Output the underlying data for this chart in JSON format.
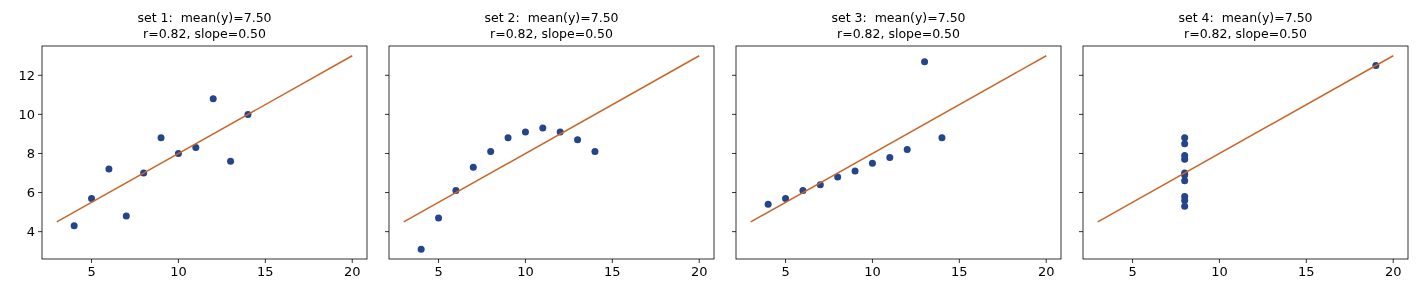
{
  "chart_data": [
    {
      "type": "scatter",
      "title": "set 1:  mean(y)=7.50\nr=0.82, slope=0.50",
      "xlim": [
        2.15,
        20.85
      ],
      "xticks": [
        5,
        10,
        15,
        20
      ],
      "ylim": [
        2.6,
        13.5
      ],
      "yticks": [
        4,
        6,
        8,
        10,
        12
      ],
      "marker": "circle",
      "series": [
        {
          "color": "#24448c",
          "x": [
            10,
            8,
            13,
            9,
            11,
            14,
            6,
            4,
            12,
            7,
            5
          ],
          "values": [
            8.0,
            7.0,
            7.6,
            8.8,
            8.3,
            10.0,
            7.2,
            4.3,
            10.8,
            4.8,
            5.7
          ]
        },
        {
          "type": "line",
          "color": "#c8662a",
          "marker": "none",
          "x": [
            3,
            20
          ],
          "values": [
            4.5,
            13
          ]
        }
      ]
    },
    {
      "type": "scatter",
      "title": "set 2:  mean(y)=7.50\nr=0.82, slope=0.50",
      "xlim": [
        2.15,
        20.85
      ],
      "xticks": [
        5,
        10,
        15,
        20
      ],
      "ylim": [
        2.6,
        13.5
      ],
      "yticks": [
        4,
        6,
        8,
        10,
        12
      ],
      "tick_labels": "x",
      "marker": "circle",
      "series": [
        {
          "color": "#24448c",
          "x": [
            10,
            8,
            13,
            9,
            11,
            14,
            6,
            4,
            12,
            7,
            5
          ],
          "values": [
            9.1,
            8.1,
            8.7,
            8.8,
            9.3,
            8.1,
            6.1,
            3.1,
            9.1,
            7.3,
            4.7
          ]
        },
        {
          "type": "line",
          "color": "#c8662a",
          "marker": "none",
          "x": [
            3,
            20
          ],
          "values": [
            4.5,
            13
          ]
        }
      ]
    },
    {
      "type": "scatter",
      "title": "set 3:  mean(y)=7.50\nr=0.82, slope=0.50",
      "xlim": [
        2.15,
        20.85
      ],
      "xticks": [
        5,
        10,
        15,
        20
      ],
      "ylim": [
        2.6,
        13.5
      ],
      "yticks": [
        4,
        6,
        8,
        10,
        12
      ],
      "tick_labels": "x",
      "marker": "circle",
      "series": [
        {
          "color": "#24448c",
          "x": [
            10,
            8,
            13,
            9,
            11,
            14,
            6,
            4,
            12,
            7,
            5
          ],
          "values": [
            7.5,
            6.8,
            12.7,
            7.1,
            7.8,
            8.8,
            6.1,
            5.4,
            8.2,
            6.4,
            5.7
          ]
        },
        {
          "type": "line",
          "color": "#c8662a",
          "marker": "none",
          "x": [
            3,
            20
          ],
          "values": [
            4.5,
            13
          ]
        }
      ]
    },
    {
      "type": "scatter",
      "title": "set 4:  mean(y)=7.50\nr=0.82, slope=0.50",
      "xlim": [
        2.15,
        20.85
      ],
      "xticks": [
        5,
        10,
        15,
        20
      ],
      "ylim": [
        2.6,
        13.5
      ],
      "yticks": [
        4,
        6,
        8,
        10,
        12
      ],
      "tick_labels": "x",
      "marker": "circle",
      "series": [
        {
          "color": "#24448c",
          "x": [
            8,
            8,
            8,
            8,
            8,
            8,
            8,
            19,
            8,
            8,
            8
          ],
          "values": [
            6.6,
            5.8,
            7.7,
            8.8,
            8.5,
            7.0,
            5.3,
            12.5,
            5.6,
            7.9,
            6.9
          ]
        },
        {
          "type": "line",
          "color": "#c8662a",
          "marker": "none",
          "x": [
            3,
            20
          ],
          "values": [
            4.5,
            13
          ]
        }
      ]
    }
  ]
}
